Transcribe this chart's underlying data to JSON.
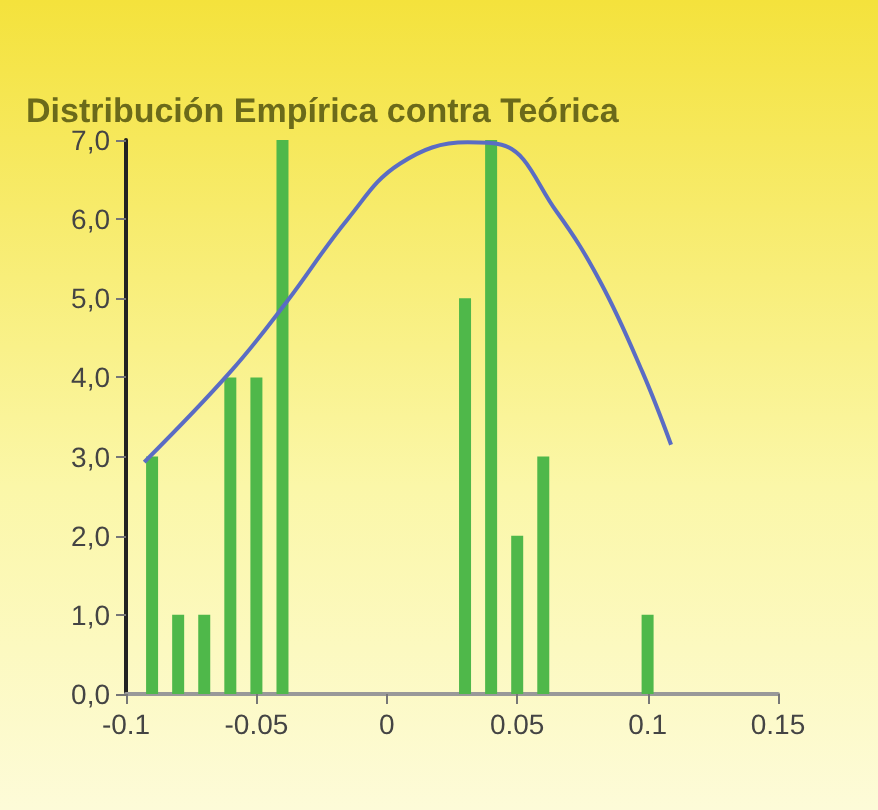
{
  "chart_data": {
    "type": "bar",
    "title": "Distribución Empírica contra Teórica",
    "x": [
      -0.09,
      -0.08,
      -0.07,
      -0.06,
      -0.05,
      -0.04,
      0.03,
      0.04,
      0.05,
      0.06,
      0.1
    ],
    "series": [
      {
        "color": "#4fb84a",
        "values": [
          3,
          1,
          1,
          4,
          4,
          7,
          5,
          7,
          2,
          3,
          1
        ]
      },
      {
        "type": "line",
        "color": "#5a6cc4",
        "x": [
          -0.093,
          -0.06,
          -0.0385,
          -0.015,
          0.005,
          0.031,
          0.044,
          0.065,
          0.082,
          0.098,
          0.109
        ],
        "values": [
          2.93,
          4.07,
          4.95,
          6.0,
          6.7,
          6.97,
          6.94,
          6.1,
          5.2,
          4.07,
          3.15
        ]
      }
    ],
    "xlim": [
      -0.1,
      0.15
    ],
    "xticks": [
      -0.1,
      -0.05,
      0,
      0.05,
      0.1,
      0.15
    ],
    "ylim": [
      0,
      7
    ],
    "yticks": [
      {
        "value": 0,
        "label": "0,0"
      },
      {
        "value": 1,
        "label": "1,0"
      },
      {
        "value": 2,
        "label": "2,0"
      },
      {
        "value": 3,
        "label": "3,0"
      },
      {
        "value": 4,
        "label": "4,0"
      },
      {
        "value": 5,
        "label": "5,0"
      },
      {
        "value": 6,
        "label": "6,0"
      },
      {
        "value": 7,
        "label": "7,0"
      }
    ],
    "grid": false,
    "marker": "none"
  }
}
